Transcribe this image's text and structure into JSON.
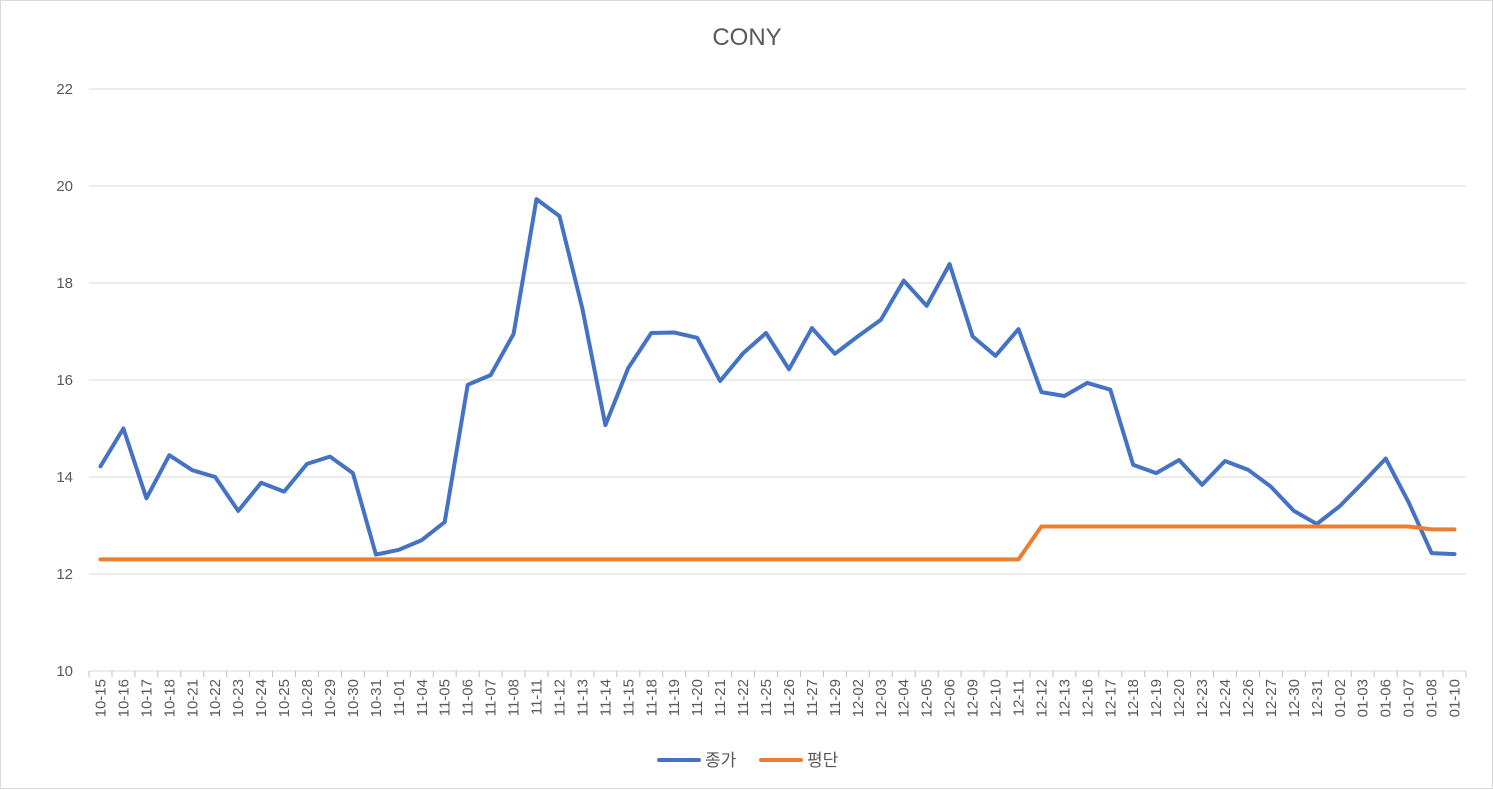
{
  "chart_data": {
    "type": "line",
    "title": "CONY",
    "xlabel": "",
    "ylabel": "",
    "ylim": [
      10,
      22
    ],
    "yticks": [
      10,
      12,
      14,
      16,
      18,
      20,
      22
    ],
    "grid": true,
    "legend_position": "bottom",
    "categories": [
      "10-15",
      "10-16",
      "10-17",
      "10-18",
      "10-21",
      "10-22",
      "10-23",
      "10-24",
      "10-25",
      "10-28",
      "10-29",
      "10-30",
      "10-31",
      "11-01",
      "11-04",
      "11-05",
      "11-06",
      "11-07",
      "11-08",
      "11-11",
      "11-12",
      "11-13",
      "11-14",
      "11-15",
      "11-18",
      "11-19",
      "11-20",
      "11-21",
      "11-22",
      "11-25",
      "11-26",
      "11-27",
      "11-29",
      "12-02",
      "12-03",
      "12-04",
      "12-05",
      "12-06",
      "12-09",
      "12-10",
      "12-11",
      "12-12",
      "12-13",
      "12-16",
      "12-17",
      "12-18",
      "12-19",
      "12-20",
      "12-23",
      "12-24",
      "12-26",
      "12-27",
      "12-30",
      "12-31",
      "01-02",
      "01-03",
      "01-06",
      "01-07",
      "01-08",
      "01-10"
    ],
    "series": [
      {
        "name": "종가",
        "color": "#4472c4",
        "values": [
          14.22,
          15.0,
          13.56,
          14.45,
          14.14,
          14.0,
          13.3,
          13.88,
          13.7,
          14.27,
          14.42,
          14.08,
          12.4,
          12.5,
          12.7,
          13.07,
          15.9,
          16.1,
          16.95,
          19.73,
          19.38,
          17.47,
          15.07,
          16.25,
          16.97,
          16.98,
          16.87,
          15.98,
          16.55,
          16.97,
          16.22,
          17.07,
          16.54,
          16.9,
          17.24,
          18.05,
          17.53,
          18.39,
          16.9,
          16.5,
          17.05,
          15.75,
          15.67,
          15.94,
          15.8,
          14.25,
          14.08,
          14.35,
          13.84,
          14.33,
          14.15,
          13.8,
          13.3,
          13.03,
          13.4,
          13.88,
          14.38,
          13.48,
          12.43,
          12.41
        ]
      },
      {
        "name": "평단",
        "color": "#ed7d31",
        "values": [
          12.3,
          12.3,
          12.3,
          12.3,
          12.3,
          12.3,
          12.3,
          12.3,
          12.3,
          12.3,
          12.3,
          12.3,
          12.3,
          12.3,
          12.3,
          12.3,
          12.3,
          12.3,
          12.3,
          12.3,
          12.3,
          12.3,
          12.3,
          12.3,
          12.3,
          12.3,
          12.3,
          12.3,
          12.3,
          12.3,
          12.3,
          12.3,
          12.3,
          12.3,
          12.3,
          12.3,
          12.3,
          12.3,
          12.3,
          12.3,
          12.3,
          12.98,
          12.98,
          12.98,
          12.98,
          12.98,
          12.98,
          12.98,
          12.98,
          12.98,
          12.98,
          12.98,
          12.98,
          12.98,
          12.98,
          12.98,
          12.98,
          12.98,
          12.92,
          12.92
        ]
      }
    ]
  }
}
